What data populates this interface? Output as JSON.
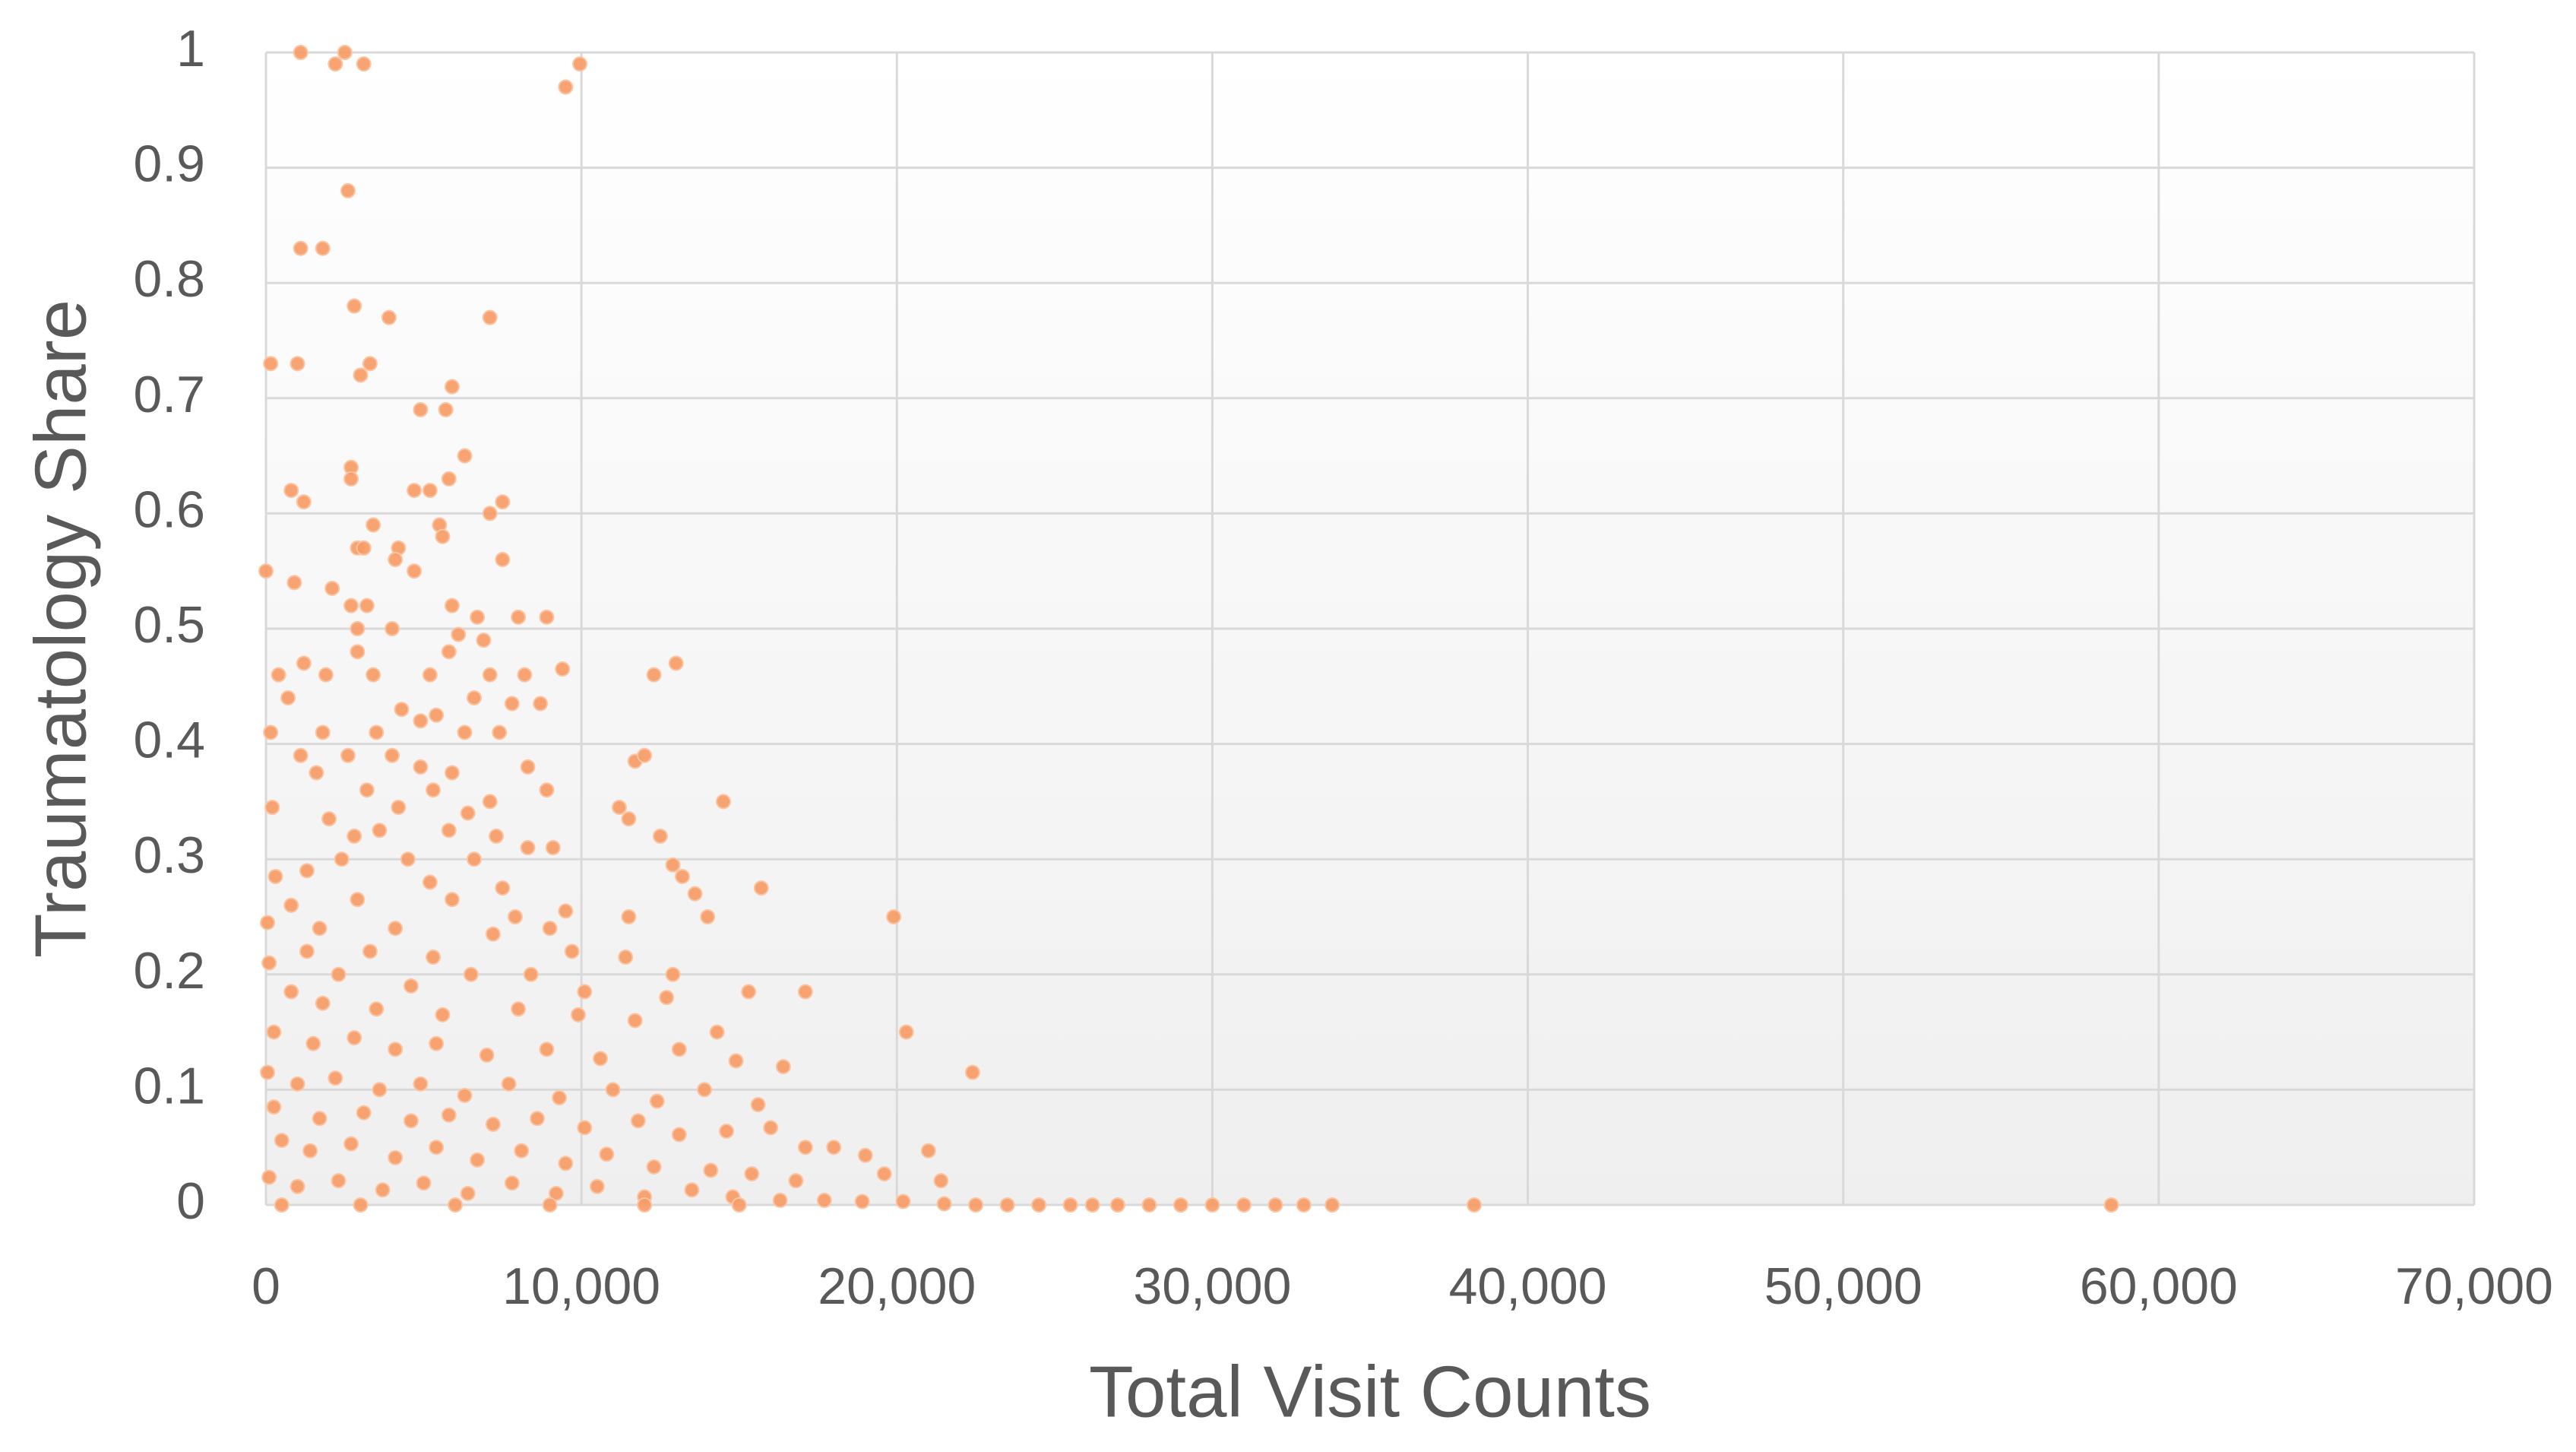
{
  "chart_data": {
    "type": "scatter",
    "x_label": "Total Visit Counts",
    "y_label": "Traumatology Share",
    "color": "#f79a63",
    "grid": true,
    "xlim": [
      0,
      70000
    ],
    "xticks": [
      0,
      {
        "value": 10000,
        "label": "10,000"
      },
      {
        "value": 20000,
        "label": "20,000"
      },
      {
        "value": 30000,
        "label": "30,000"
      },
      {
        "value": 40000,
        "label": "40,000"
      },
      {
        "value": 50000,
        "label": "50,000"
      },
      {
        "value": 60000,
        "label": "60,000"
      },
      {
        "value": 70000,
        "label": "70,000"
      }
    ],
    "ylim": [
      0,
      1
    ],
    "yticks": [
      0,
      0.1,
      0.2,
      0.3,
      0.4,
      0.5,
      0.6,
      0.7,
      0.8,
      0.9,
      1
    ],
    "x": [
      1100,
      2200,
      2500,
      3100,
      9500,
      9950,
      2600,
      1100,
      1800,
      2800,
      3900,
      7100,
      150,
      1000,
      3300,
      3000,
      5900,
      5700,
      4900,
      6300,
      2700,
      2700,
      800,
      1200,
      5200,
      4700,
      7500,
      7100,
      5800,
      3400,
      0,
      900,
      2900,
      3100,
      4200,
      5500,
      7500,
      4700,
      5600,
      4100,
      2100,
      2700,
      3200,
      5900,
      6700,
      8000,
      8900,
      4000,
      2900,
      6100,
      6900,
      2900,
      5800,
      9400,
      400,
      1200,
      1900,
      12300,
      13000,
      3400,
      5200,
      7100,
      8200,
      700,
      6600,
      7800,
      8700,
      4300,
      5400,
      150,
      1800,
      3500,
      4900,
      6300,
      7400,
      1100,
      2600,
      4000,
      4900,
      5900,
      8300,
      11700,
      12000,
      1600,
      3200,
      5300,
      7100,
      8900,
      14500,
      200,
      2000,
      4200,
      6400,
      11200,
      11500,
      2800,
      3600,
      5800,
      7300,
      8300,
      9100,
      12500,
      1300,
      2400,
      4500,
      6600,
      12900,
      13200,
      13600,
      300,
      5200,
      7500,
      15700,
      14000,
      800,
      2900,
      5900,
      7900,
      9500,
      11500,
      19900,
      50,
      1700,
      4100,
      7200,
      9000,
      1300,
      3300,
      5300,
      9700,
      11400,
      100,
      2300,
      4600,
      6500,
      8400,
      12900,
      15300,
      17100,
      800,
      10100,
      12700,
      1800,
      3500,
      5600,
      8000,
      9900,
      11700,
      14300,
      20300,
      250,
      1500,
      2800,
      4100,
      5400,
      7000,
      8900,
      10600,
      13100,
      14900,
      16400,
      22400,
      50,
      1000,
      2200,
      3600,
      4900,
      6300,
      7700,
      9300,
      11000,
      12400,
      13900,
      15600,
      250,
      1700,
      3100,
      4600,
      5800,
      7200,
      8600,
      10100,
      11800,
      13100,
      14600,
      16000,
      17100,
      18000,
      19000,
      21000,
      19600,
      21400,
      500,
      1400,
      2700,
      4100,
      5400,
      6700,
      8100,
      9500,
      10800,
      12300,
      14100,
      15400,
      16800,
      100,
      1000,
      2300,
      3700,
      5000,
      6400,
      7800,
      9200,
      10500,
      12000,
      13500,
      14800,
      16300,
      17700,
      18900,
      20200,
      21500,
      22500,
      23500,
      24500,
      25500,
      26200,
      27000,
      28000,
      29000,
      30000,
      31000,
      32000,
      32900,
      33800,
      38300,
      58500,
      500,
      3000,
      6000,
      9000,
      12000,
      15000
    ],
    "values": [
      1,
      0.99,
      1,
      0.99,
      0.97,
      0.99,
      0.88,
      0.83,
      0.83,
      0.78,
      0.77,
      0.77,
      0.73,
      0.73,
      0.73,
      0.72,
      0.71,
      0.69,
      0.69,
      0.65,
      0.64,
      0.63,
      0.62,
      0.61,
      0.62,
      0.62,
      0.61,
      0.6,
      0.63,
      0.59,
      0.55,
      0.54,
      0.57,
      0.57,
      0.57,
      0.59,
      0.56,
      0.55,
      0.58,
      0.56,
      0.535,
      0.52,
      0.52,
      0.52,
      0.51,
      0.51,
      0.51,
      0.5,
      0.5,
      0.495,
      0.49,
      0.48,
      0.48,
      0.465,
      0.46,
      0.47,
      0.46,
      0.46,
      0.47,
      0.46,
      0.46,
      0.46,
      0.46,
      0.44,
      0.44,
      0.435,
      0.435,
      0.43,
      0.425,
      0.41,
      0.41,
      0.41,
      0.42,
      0.41,
      0.41,
      0.39,
      0.39,
      0.39,
      0.38,
      0.375,
      0.38,
      0.385,
      0.39,
      0.375,
      0.36,
      0.36,
      0.35,
      0.36,
      0.35,
      0.345,
      0.335,
      0.345,
      0.34,
      0.345,
      0.335,
      0.32,
      0.325,
      0.325,
      0.32,
      0.31,
      0.31,
      0.32,
      0.29,
      0.3,
      0.3,
      0.3,
      0.295,
      0.285,
      0.27,
      0.285,
      0.28,
      0.275,
      0.275,
      0.25,
      0.26,
      0.265,
      0.265,
      0.25,
      0.255,
      0.25,
      0.25,
      0.245,
      0.24,
      0.24,
      0.235,
      0.24,
      0.22,
      0.22,
      0.215,
      0.22,
      0.215,
      0.21,
      0.2,
      0.19,
      0.2,
      0.2,
      0.2,
      0.185,
      0.185,
      0.185,
      0.185,
      0.18,
      0.175,
      0.17,
      0.165,
      0.17,
      0.165,
      0.16,
      0.15,
      0.15,
      0.15,
      0.14,
      0.145,
      0.135,
      0.14,
      0.13,
      0.135,
      0.127,
      0.135,
      0.125,
      0.12,
      0.115,
      0.115,
      0.105,
      0.11,
      0.1,
      0.105,
      0.095,
      0.105,
      0.093,
      0.1,
      0.09,
      0.1,
      0.087,
      0.085,
      0.075,
      0.08,
      0.073,
      0.078,
      0.07,
      0.075,
      0.067,
      0.073,
      0.061,
      0.064,
      0.067,
      0.05,
      0.05,
      0.043,
      0.047,
      0.027,
      0.021,
      0.056,
      0.047,
      0.053,
      0.041,
      0.05,
      0.039,
      0.047,
      0.036,
      0.044,
      0.033,
      0.03,
      0.027,
      0.021,
      0.024,
      0.016,
      0.021,
      0.013,
      0.019,
      0.01,
      0.019,
      0.01,
      0.016,
      0.007,
      0.013,
      0.007,
      0.004,
      0.004,
      0.003,
      0.003,
      0.001,
      0,
      0,
      0,
      0,
      0,
      0,
      0,
      0,
      0,
      0,
      0,
      0,
      0,
      0,
      0,
      0,
      0,
      0,
      0,
      0,
      0
    ]
  }
}
